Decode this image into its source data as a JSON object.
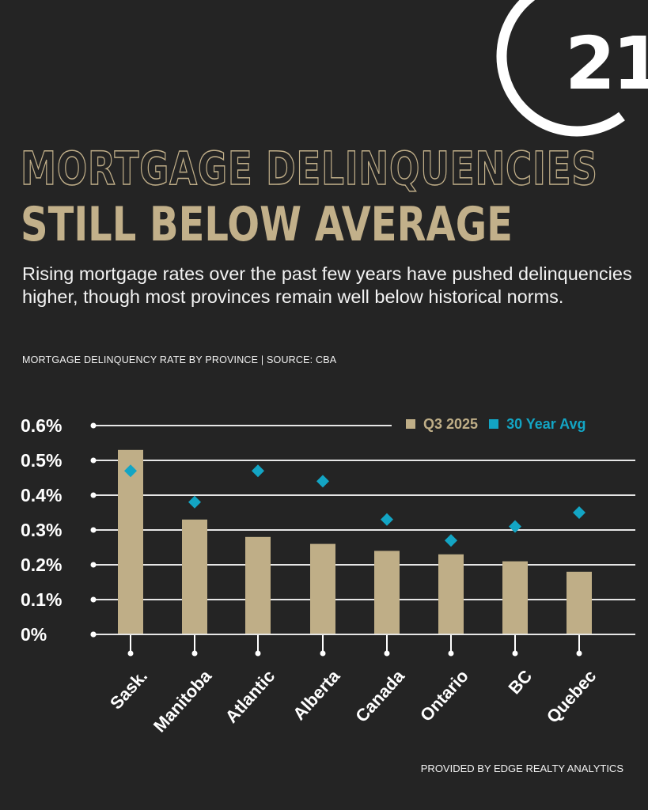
{
  "logo": {
    "text": "21",
    "icon": "century21-logo-icon"
  },
  "header": {
    "title_line1": "MORTGAGE DELINQUENCIES",
    "title_line2": "STILL BELOW AVERAGE",
    "subtitle": "Rising mortgage rates over the past few years have pushed delinquencies higher, though most provinces remain well below historical norms.",
    "source": "MORTGAGE DELINQUENCY RATE BY PROVINCE | SOURCE: CBA"
  },
  "legend": {
    "items": [
      {
        "label": "Q3 2025",
        "color": "#bfae87"
      },
      {
        "label": "30 Year Avg",
        "color": "#13a5c4"
      }
    ]
  },
  "footer": {
    "provided_by": "PROVIDED BY EDGE REALTY ANALYTICS"
  },
  "colors": {
    "background": "#242424",
    "bar": "#bfae87",
    "marker": "#13a5c4",
    "title": "#c2b08a",
    "grid": "#e6e6e6"
  },
  "chart_data": {
    "type": "bar",
    "title": "Mortgage Delinquency Rate by Province",
    "xlabel": "",
    "ylabel": "",
    "categories": [
      "Sask.",
      "Manitoba",
      "Atlantic",
      "Alberta",
      "Canada",
      "Ontario",
      "BC",
      "Quebec"
    ],
    "series": [
      {
        "name": "Q3 2025",
        "type": "bar",
        "values": [
          0.53,
          0.33,
          0.28,
          0.26,
          0.24,
          0.23,
          0.21,
          0.18
        ]
      },
      {
        "name": "30 Year Avg",
        "type": "scatter",
        "marker": "diamond",
        "values": [
          0.47,
          0.38,
          0.47,
          0.44,
          0.33,
          0.27,
          0.31,
          0.35
        ]
      }
    ],
    "yticks": [
      "0%",
      "0.1%",
      "0.2%",
      "0.3%",
      "0.4%",
      "0.5%",
      "0.6%"
    ],
    "ylim": [
      0,
      0.6
    ],
    "grid": true,
    "legend_position": "top-right",
    "units": "%"
  }
}
